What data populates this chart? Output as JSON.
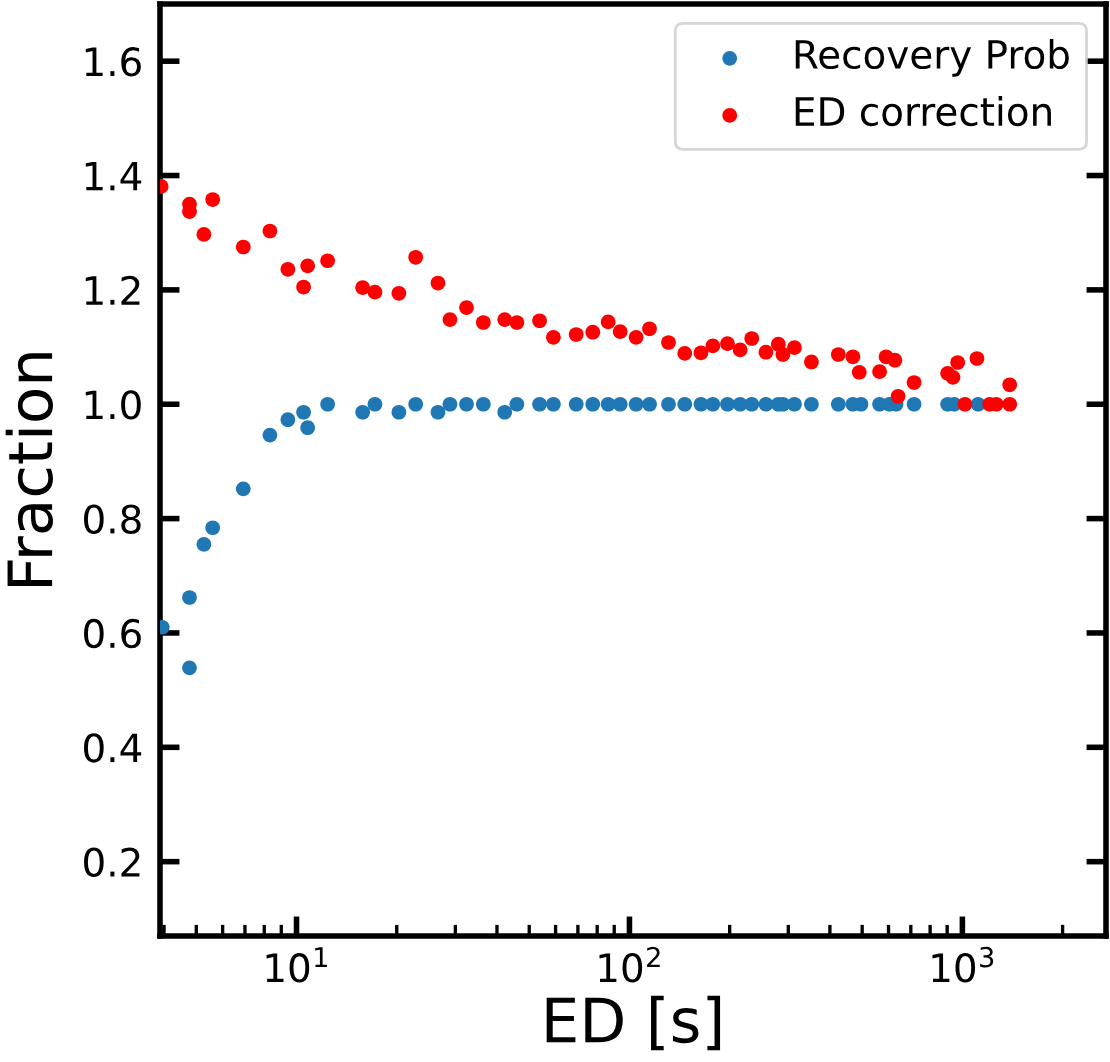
{
  "chart_data": {
    "type": "scatter",
    "xlabel": "ED [s]",
    "ylabel": "Fraction",
    "log": "x",
    "grid": false,
    "legend": "top right",
    "marker": "circle",
    "xlim": [
      3.89,
      2700
    ],
    "ylim": [
      0.07,
      1.7
    ],
    "xticks": [
      {
        "value": 10,
        "label": "10$^{1}$"
      },
      {
        "value": 100,
        "label": "10$^{2}$"
      },
      {
        "value": 1000,
        "label": "10$^{3}$"
      }
    ],
    "yticks": [
      0.2,
      0.4,
      0.6,
      0.8,
      {
        "value": 1.0,
        "label": "1.0"
      },
      1.2,
      1.4,
      1.6
    ],
    "series": [
      {
        "name": "Recovery Prob",
        "color": "#1f77b4",
        "x": [
          3.95,
          4.77,
          4.77,
          5.27,
          5.6,
          6.92,
          8.32,
          9.42,
          10.5,
          10.8,
          12.4,
          15.8,
          17.2,
          20.3,
          22.8,
          26.6,
          28.9,
          32.4,
          36.4,
          42.2,
          45.9,
          53.7,
          59.1,
          69.2,
          77.6,
          86.3,
          93.8,
          104.7,
          114.9,
          131,
          146.6,
          164,
          178,
          197,
          215,
          233,
          257,
          280,
          289,
          313,
          352,
          424,
          469,
          496,
          564,
          604,
          632,
          716,
          903,
          945,
          1115
        ],
        "values": [
          0.61,
          0.662,
          0.539,
          0.755,
          0.784,
          0.852,
          0.946,
          0.973,
          0.986,
          0.959,
          1.0,
          0.986,
          1.0,
          0.986,
          1.0,
          0.986,
          1.0,
          1.0,
          1.0,
          0.986,
          1.0,
          1.0,
          1.0,
          1.0,
          1.0,
          1.0,
          1.0,
          1.0,
          1.0,
          1.0,
          1.0,
          1.0,
          1.0,
          1.0,
          1.0,
          1.0,
          1.0,
          1.0,
          1.0,
          1.0,
          1.0,
          1.0,
          1.0,
          1.0,
          1.0,
          1.0,
          1.0,
          1.0,
          1.0,
          1.0,
          1.0
        ]
      },
      {
        "name": "ED correction",
        "color": "#ff0000",
        "x": [
          3.92,
          4.77,
          4.77,
          5.27,
          5.6,
          6.92,
          8.32,
          9.42,
          10.5,
          10.8,
          12.4,
          15.8,
          17.2,
          20.3,
          22.8,
          26.6,
          28.9,
          32.4,
          36.4,
          42.2,
          45.9,
          53.7,
          59.1,
          69.2,
          77.6,
          86.3,
          93.8,
          104.7,
          114.9,
          131,
          146.6,
          164,
          178,
          197,
          215,
          233,
          257,
          280,
          289,
          313,
          352,
          424,
          469,
          490,
          564,
          590,
          627,
          641,
          716,
          903,
          937,
          968,
          1018,
          1106,
          1208,
          1264,
          1387,
          1387
        ],
        "values": [
          1.381,
          1.35,
          1.337,
          1.297,
          1.358,
          1.275,
          1.303,
          1.236,
          1.205,
          1.242,
          1.251,
          1.204,
          1.196,
          1.194,
          1.257,
          1.212,
          1.148,
          1.169,
          1.143,
          1.148,
          1.143,
          1.146,
          1.117,
          1.122,
          1.126,
          1.144,
          1.127,
          1.117,
          1.132,
          1.108,
          1.089,
          1.09,
          1.102,
          1.106,
          1.095,
          1.115,
          1.091,
          1.105,
          1.087,
          1.099,
          1.074,
          1.087,
          1.083,
          1.056,
          1.057,
          1.083,
          1.077,
          1.014,
          1.038,
          1.054,
          1.047,
          1.073,
          1.0,
          1.08,
          1.0,
          1.0,
          1.034,
          1.0
        ]
      }
    ]
  }
}
